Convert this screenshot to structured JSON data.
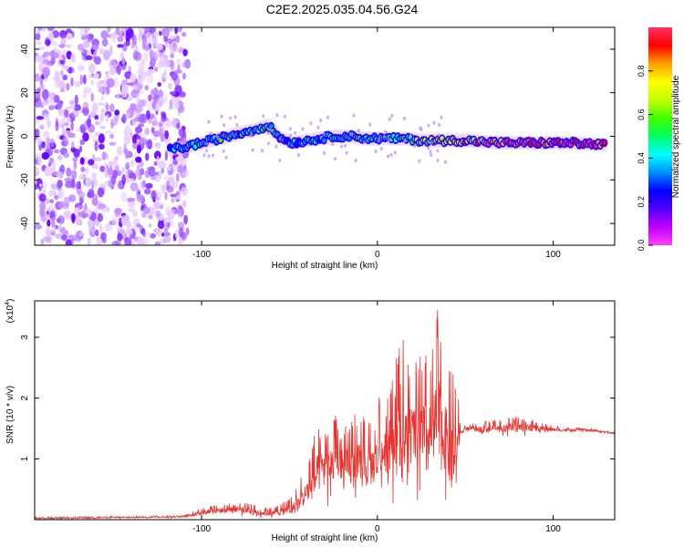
{
  "title": "C2E2.2025.035.04.56.G24",
  "chart_data": [
    {
      "type": "heatmap",
      "title": "",
      "xlabel": "Height of straight line (km)",
      "ylabel": "Frequency (Hz)",
      "xlim": [
        -195,
        135
      ],
      "ylim": [
        -50,
        50
      ],
      "x_ticks": [
        -100,
        0,
        100
      ],
      "y_ticks": [
        -40,
        -20,
        0,
        20,
        40
      ],
      "colorbar": {
        "label": "Normalized spectral amplitude",
        "range": [
          0,
          1
        ],
        "ticks": [
          "0.0",
          "0.2",
          "0.4",
          "0.6",
          "0.8"
        ],
        "colors": [
          "#ff40ff",
          "#c000ff",
          "#5000ff",
          "#0000ff",
          "#0090ff",
          "#00ffff",
          "#00ff60",
          "#40ff00",
          "#c0ff00",
          "#ffff00",
          "#ffa000",
          "#ff0000",
          "#ff3060"
        ]
      },
      "noise_region_x": [
        -195,
        -108
      ],
      "band": {
        "x": [
          -118,
          -110,
          -100,
          -90,
          -80,
          -70,
          -62,
          -55,
          -48,
          -40,
          -32,
          -25,
          -15,
          -5,
          5,
          15,
          25,
          35,
          50,
          70,
          90,
          110,
          130
        ],
        "freq": [
          -6,
          -5,
          -3,
          -1,
          1,
          3,
          5,
          -1,
          -3,
          -2,
          -1,
          0,
          0,
          -1,
          -1,
          -1,
          -2,
          -2,
          -2,
          -3,
          -3,
          -3,
          -4
        ],
        "amplitude": [
          0.35,
          0.4,
          0.4,
          0.45,
          0.4,
          0.45,
          0.45,
          0.35,
          0.35,
          0.4,
          0.4,
          0.45,
          0.45,
          0.4,
          0.45,
          0.5,
          0.6,
          0.7,
          0.8,
          0.85,
          0.9,
          0.95,
          0.95
        ]
      }
    },
    {
      "type": "line",
      "title": "",
      "xlabel": "Height of straight line (km)",
      "ylabel": "SNR (10 * v/v)",
      "y_multiplier": "(x10",
      "y_multiplier_exp": "4",
      "y_multiplier_close": ")",
      "xlim": [
        -195,
        135
      ],
      "ylim": [
        0,
        3.6
      ],
      "x_ticks": [
        -100,
        0,
        100
      ],
      "y_ticks": [
        1,
        2,
        3
      ],
      "color": "#e8322e",
      "series": [
        {
          "x": [
            -195,
            -160,
            -130,
            -110,
            -100,
            -90,
            -80,
            -70,
            -60,
            -50,
            -45,
            -40,
            -35,
            -30,
            -25,
            -20,
            -15,
            -10,
            -5,
            0,
            5,
            10,
            15,
            20,
            25,
            28,
            30,
            33,
            35,
            38,
            40,
            42,
            45,
            47,
            50,
            60,
            70,
            80,
            90,
            100,
            110,
            120,
            135
          ],
          "y": [
            0.02,
            0.03,
            0.04,
            0.05,
            0.12,
            0.15,
            0.18,
            0.12,
            0.1,
            0.15,
            0.25,
            0.45,
            0.7,
            0.9,
            0.9,
            0.8,
            0.85,
            0.9,
            0.8,
            1.0,
            1.1,
            1.3,
            1.2,
            1.4,
            1.35,
            1.25,
            1.4,
            1.5,
            1.6,
            1.3,
            1.25,
            0.95,
            1.1,
            1.4,
            1.5,
            1.48,
            1.5,
            1.52,
            1.5,
            1.48,
            1.47,
            1.47,
            1.42
          ],
          "envelope_max": [
            0.04,
            0.05,
            0.06,
            0.07,
            0.2,
            0.25,
            0.3,
            0.25,
            0.2,
            0.35,
            0.6,
            0.9,
            1.6,
            1.4,
            1.8,
            1.5,
            1.7,
            1.8,
            1.6,
            2.1,
            1.9,
            2.6,
            3.05,
            2.4,
            2.9,
            3.0,
            2.8,
            3.35,
            3.6,
            2.6,
            2.8,
            2.6,
            2.7,
            1.6,
            1.55,
            1.62,
            1.65,
            1.7,
            1.62,
            1.55,
            1.52,
            1.5,
            1.45
          ],
          "envelope_min": [
            0.01,
            0.01,
            0.02,
            0.02,
            0.05,
            0.05,
            0.05,
            0.02,
            0.02,
            0.03,
            0.05,
            0.05,
            0.1,
            0.2,
            0.15,
            0.1,
            0.3,
            0.2,
            0.3,
            0.5,
            0.4,
            0.2,
            0.3,
            0.3,
            0.1,
            0.2,
            0.3,
            0.2,
            0.1,
            0.3,
            0.3,
            0.3,
            0.4,
            1.4,
            1.45,
            1.4,
            1.38,
            1.35,
            1.4,
            1.42,
            1.43,
            1.44,
            1.4
          ]
        }
      ]
    }
  ]
}
